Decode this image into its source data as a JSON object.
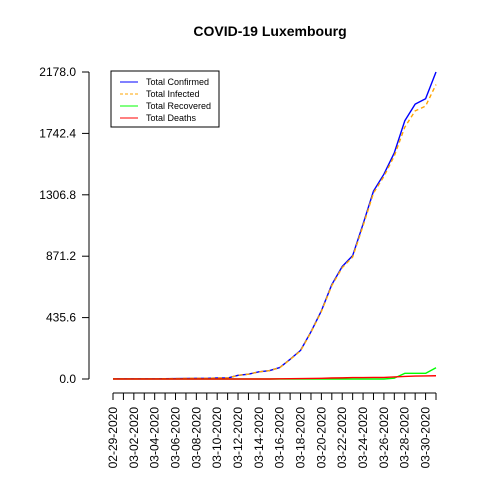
{
  "chart_data": {
    "type": "line",
    "title": "COVID-19 Luxembourg",
    "xlabel": "",
    "ylabel": "",
    "ylim": [
      0,
      2178
    ],
    "y_ticks": [
      "0.0",
      "435.6",
      "871.2",
      "1306.8",
      "1742.4",
      "2178.0"
    ],
    "x_tick_labels": [
      "02-29-2020",
      "03-02-2020",
      "03-04-2020",
      "03-06-2020",
      "03-08-2020",
      "03-10-2020",
      "03-12-2020",
      "03-14-2020",
      "03-16-2020",
      "03-18-2020",
      "03-20-2020",
      "03-22-2020",
      "03-24-2020",
      "03-26-2020",
      "03-28-2020",
      "03-30-2020"
    ],
    "x": [
      "02-29-2020",
      "03-01-2020",
      "03-02-2020",
      "03-03-2020",
      "03-04-2020",
      "03-05-2020",
      "03-06-2020",
      "03-07-2020",
      "03-08-2020",
      "03-09-2020",
      "03-10-2020",
      "03-11-2020",
      "03-12-2020",
      "03-13-2020",
      "03-14-2020",
      "03-15-2020",
      "03-16-2020",
      "03-17-2020",
      "03-18-2020",
      "03-19-2020",
      "03-20-2020",
      "03-21-2020",
      "03-22-2020",
      "03-23-2020",
      "03-24-2020",
      "03-25-2020",
      "03-26-2020",
      "03-27-2020",
      "03-28-2020",
      "03-29-2020",
      "03-30-2020",
      "03-31-2020"
    ],
    "legend_position": "top-left",
    "grid": false,
    "series": [
      {
        "name": "Total Confirmed",
        "color": "#0000ff",
        "dash": "solid",
        "values": [
          1,
          1,
          1,
          1,
          1,
          2,
          3,
          4,
          5,
          5,
          7,
          7,
          26,
          34,
          51,
          59,
          81,
          140,
          203,
          335,
          484,
          670,
          798,
          875,
          1099,
          1333,
          1453,
          1605,
          1831,
          1950,
          1988,
          2178
        ]
      },
      {
        "name": "Total Infected",
        "color": "#ffa500",
        "dash": "dashed",
        "values": [
          1,
          1,
          1,
          1,
          1,
          2,
          3,
          4,
          5,
          5,
          7,
          7,
          26,
          34,
          51,
          59,
          80,
          138,
          200,
          331,
          479,
          663,
          790,
          865,
          1087,
          1319,
          1437,
          1583,
          1786,
          1902,
          1936,
          2089
        ]
      },
      {
        "name": "Total Recovered",
        "color": "#00ff00",
        "dash": "solid",
        "values": [
          0,
          0,
          0,
          0,
          0,
          0,
          0,
          0,
          0,
          0,
          0,
          0,
          0,
          0,
          0,
          0,
          0,
          0,
          0,
          0,
          0,
          0,
          0,
          0,
          0,
          0,
          0,
          6,
          40,
          40,
          40,
          80
        ]
      },
      {
        "name": "Total Deaths",
        "color": "#ff0000",
        "dash": "solid",
        "values": [
          0,
          0,
          0,
          0,
          0,
          0,
          0,
          0,
          0,
          0,
          0,
          0,
          0,
          0,
          0,
          0,
          1,
          2,
          3,
          4,
          5,
          7,
          8,
          10,
          10,
          11,
          11,
          15,
          18,
          21,
          22,
          23
        ]
      }
    ]
  }
}
